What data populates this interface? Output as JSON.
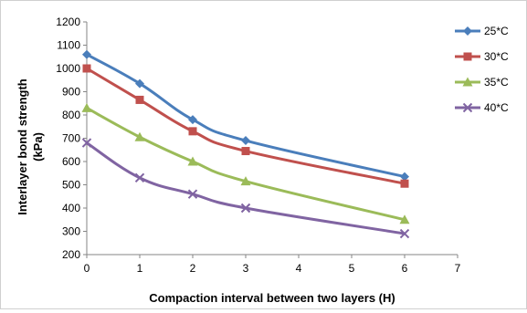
{
  "chart_data": {
    "type": "line",
    "title": "",
    "xlabel": "Compaction interval between two layers (H)",
    "ylabel_line1": "Interlayer bond strength",
    "ylabel_line2": "(kPa)",
    "xlim": [
      0,
      7
    ],
    "ylim": [
      200,
      1200
    ],
    "x_ticks": [
      0,
      1,
      2,
      3,
      4,
      5,
      6,
      7
    ],
    "y_ticks": [
      200,
      300,
      400,
      500,
      600,
      700,
      800,
      900,
      1000,
      1100,
      1200
    ],
    "grid": false,
    "legend_position": "right",
    "x": [
      0,
      1,
      2,
      3,
      6
    ],
    "series": [
      {
        "name": "25*C",
        "color": "#4a7ebb",
        "marker": "diamond",
        "values": [
          1060,
          935,
          780,
          690,
          535
        ]
      },
      {
        "name": "30*C",
        "color": "#c0504d",
        "marker": "square",
        "values": [
          1000,
          865,
          730,
          645,
          505
        ]
      },
      {
        "name": "35*C",
        "color": "#9bbb59",
        "marker": "triangle",
        "values": [
          830,
          705,
          600,
          515,
          350
        ]
      },
      {
        "name": "40*C",
        "color": "#8064a2",
        "marker": "x",
        "values": [
          680,
          530,
          460,
          400,
          290
        ]
      }
    ]
  }
}
